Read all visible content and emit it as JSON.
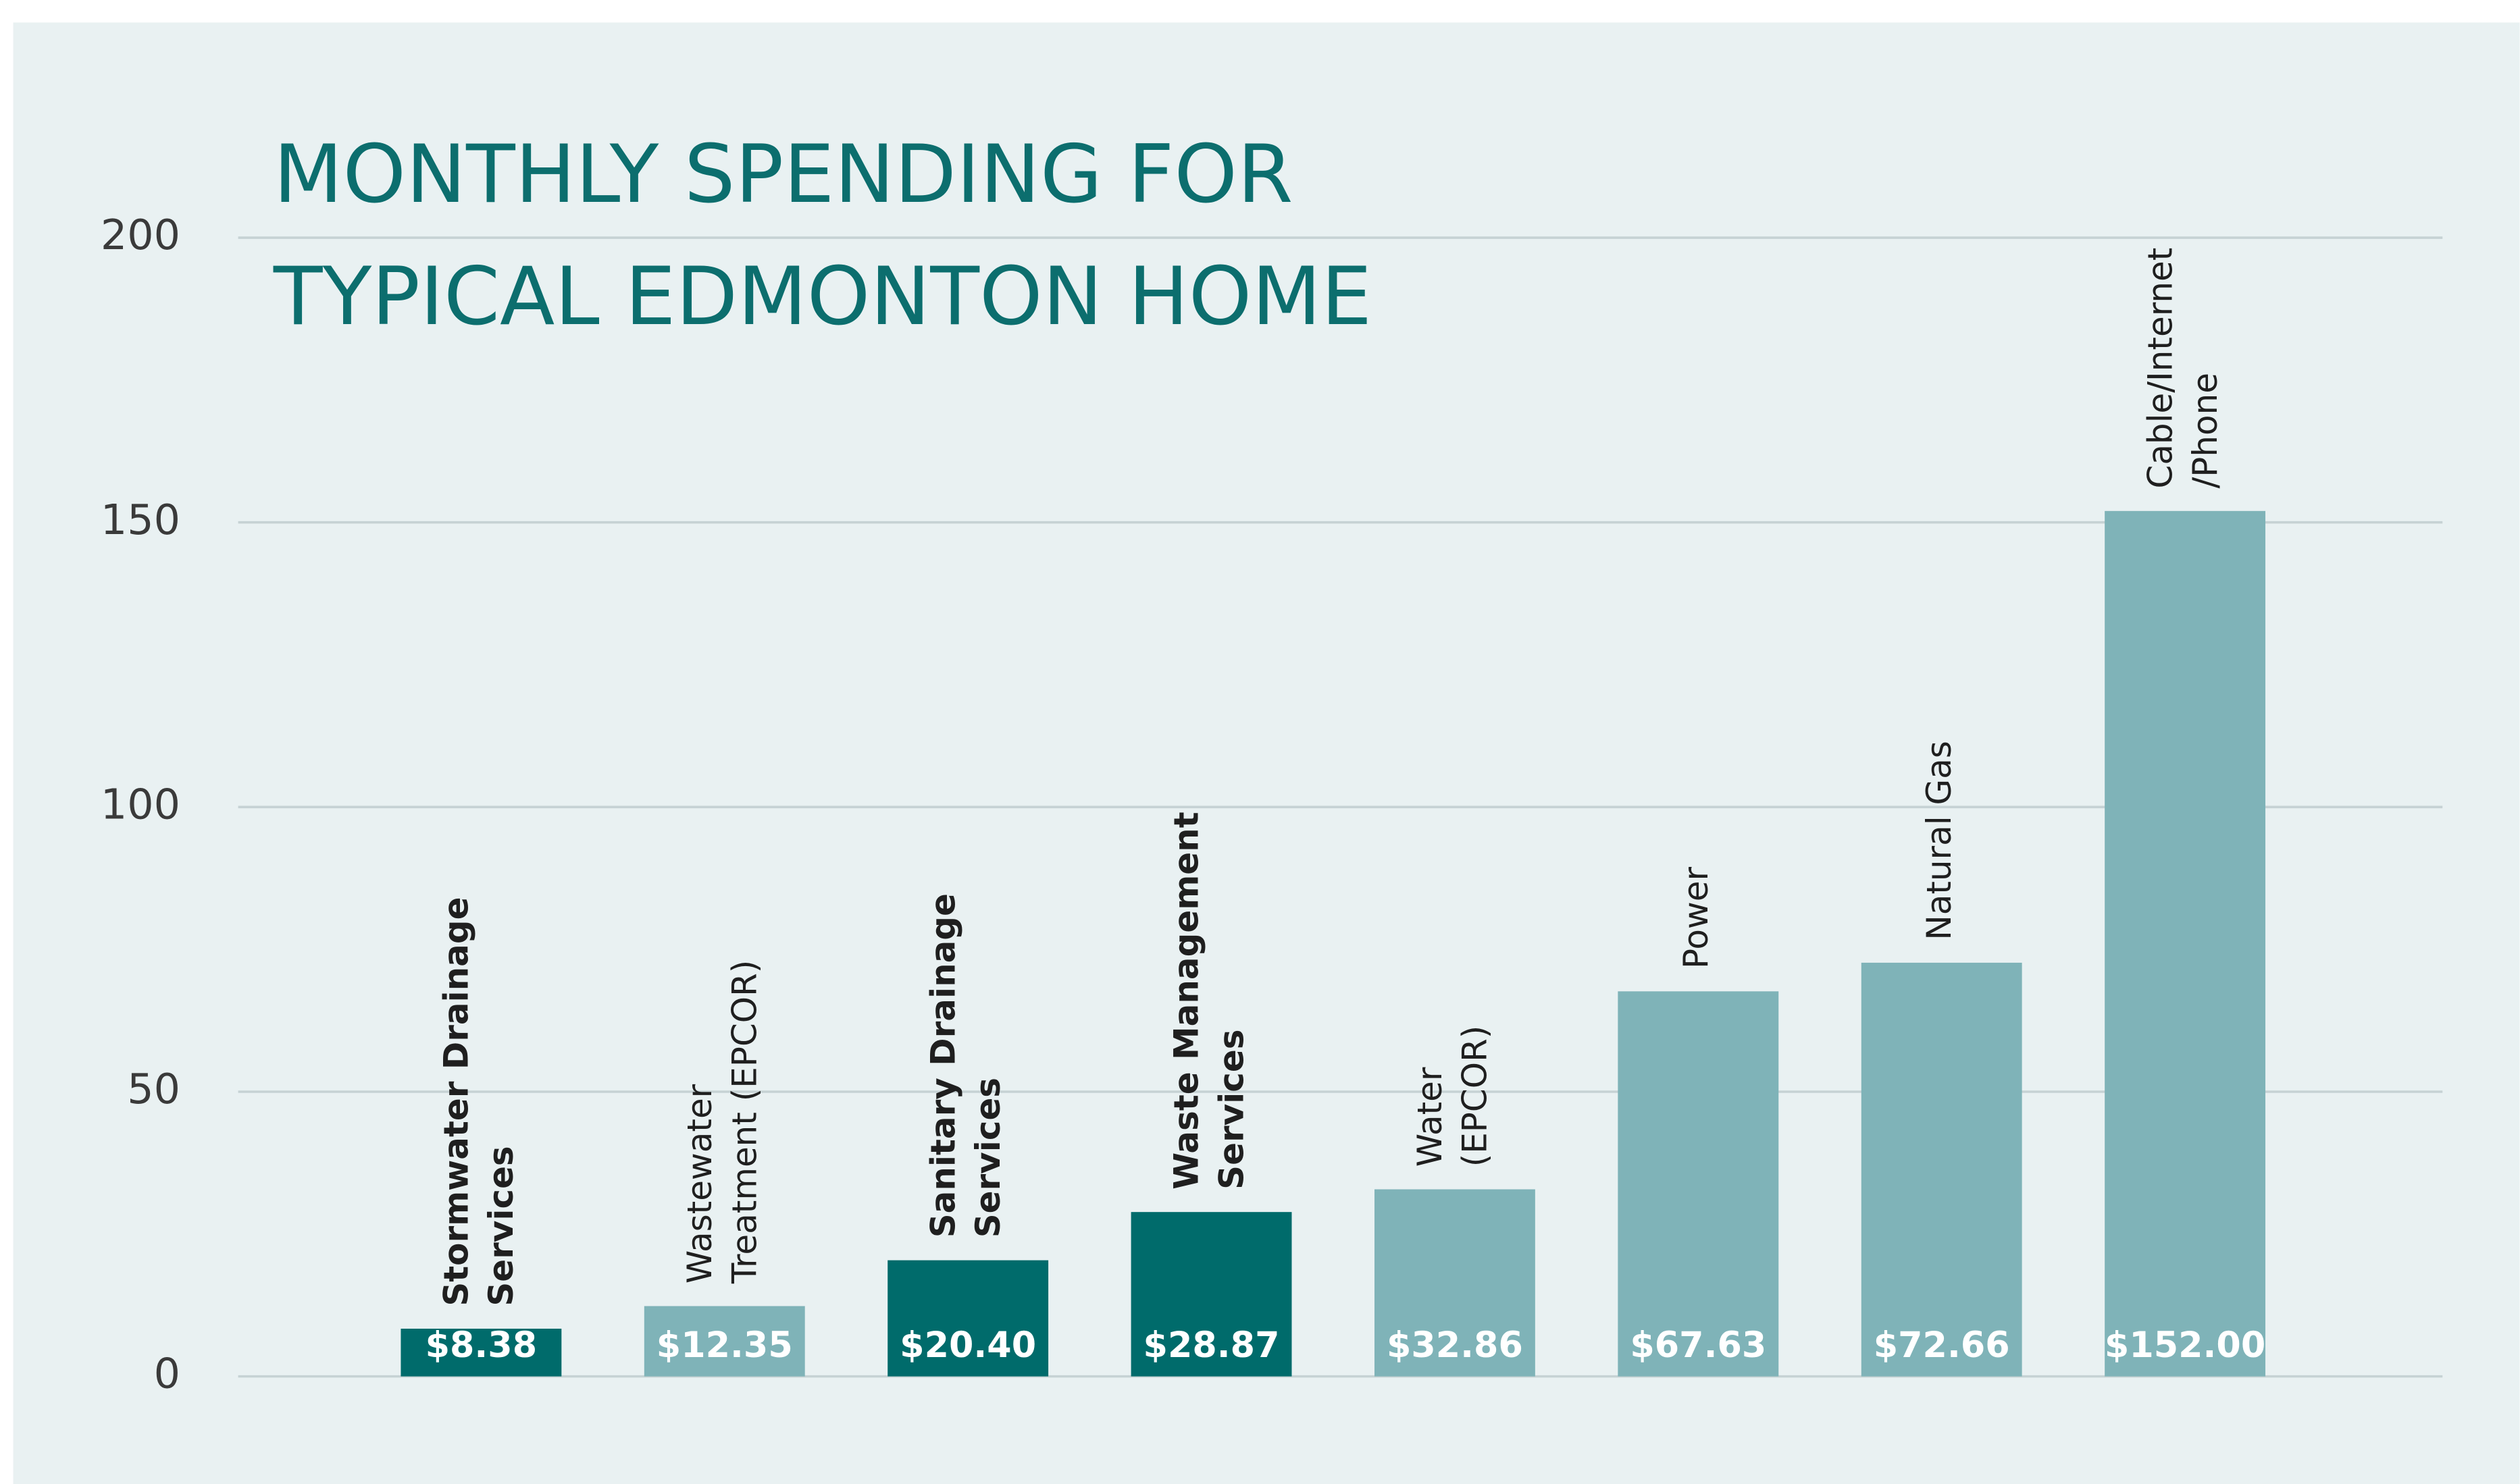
{
  "chart_data": {
    "type": "bar",
    "title": [
      "MONTHLY SPENDING FOR",
      "TYPICAL EDMONTON HOME"
    ],
    "categories": [
      [
        "Stormwater Drainage",
        "Services"
      ],
      [
        "Wastewater",
        "Treatment (EPCOR)"
      ],
      [
        "Sanitary Drainage",
        "Services"
      ],
      [
        "Waste Management",
        "Services"
      ],
      [
        "Water",
        "(EPCOR)"
      ],
      [
        "Power"
      ],
      [
        "Natural Gas"
      ],
      [
        "Cable/Internet",
        "/Phone"
      ]
    ],
    "values": [
      8.38,
      12.35,
      20.4,
      28.87,
      32.86,
      67.63,
      72.66,
      152.0
    ],
    "value_labels": [
      "$8.38",
      "$12.35",
      "$20.40",
      "$28.87",
      "$32.86",
      "$67.63",
      "$72.66",
      "$152.00"
    ],
    "colors": [
      "#006b6b",
      "#7fb3b8",
      "#006b6b",
      "#006b6b",
      "#7fb3b8",
      "#7fb3b8",
      "#7fb3b8",
      "#7fb3b8"
    ],
    "bold": [
      true,
      false,
      true,
      true,
      false,
      false,
      false,
      false
    ],
    "ylim": [
      0,
      200
    ],
    "yticks": [
      0,
      50,
      100,
      150,
      200
    ],
    "grid": true
  }
}
